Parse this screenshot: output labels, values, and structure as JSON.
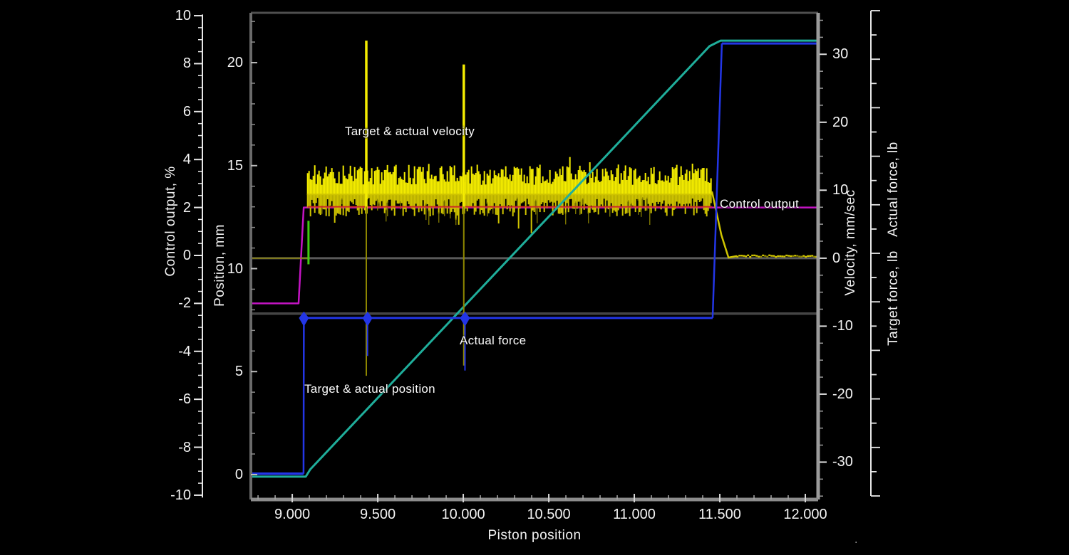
{
  "chart_data": {
    "type": "line",
    "title": "",
    "xlabel": "Piston position",
    "legend_position": "in-plot annotations",
    "grid": "off",
    "background": "black",
    "axes": {
      "x": {
        "label": "Piston position",
        "range": [
          8.758,
          12.075
        ],
        "tick_values": [
          9.0,
          9.5,
          10.0,
          10.5,
          11.0,
          11.5,
          12.0
        ],
        "tick_labels": [
          "9.000",
          "9.500",
          "10.000",
          "10.500",
          "11.000",
          "11.500",
          "12.000"
        ],
        "minor_step": 0.1
      },
      "control": {
        "label": "Control output, %",
        "range": [
          -10.18,
          10.12
        ],
        "tick_values": [
          10,
          8,
          6,
          4,
          2,
          0,
          -2,
          -4,
          -6,
          -8,
          -10
        ],
        "tick_labels": [
          "10",
          "8",
          "6",
          "4",
          "2",
          "0",
          "-2",
          "-4",
          "-6",
          "-8",
          "-10"
        ],
        "minor_step": 0.5
      },
      "position": {
        "label": "Position, mm",
        "range": [
          -1.21,
          22.42
        ],
        "tick_values": [
          20,
          15,
          10,
          5,
          0
        ],
        "tick_labels": [
          "20",
          "15",
          "10",
          "5",
          "0"
        ],
        "minor_step": 1
      },
      "velocity": {
        "label": "Velocity, mm/sec",
        "range": [
          -35.5,
          36.1
        ],
        "tick_values": [
          30,
          20,
          10,
          0,
          -10,
          -20,
          -30
        ],
        "tick_labels": [
          "30",
          "20",
          "10",
          "0",
          "-10",
          "-20",
          "-30"
        ],
        "minor_step": 2.5
      },
      "actual_force": {
        "label": "Actual force, lb",
        "tick_labels": "unlabeled tick rule"
      },
      "target_force": {
        "label": "Target force, lb",
        "tick_labels": "unlabeled tick rule"
      }
    },
    "series": [
      {
        "name": "Control output",
        "axis": "control",
        "color_key": "trace_magenta",
        "points": [
          [
            8.758,
            -2.0
          ],
          [
            9.037,
            -2.0
          ],
          [
            9.067,
            2.0
          ],
          [
            12.075,
            2.0
          ]
        ]
      },
      {
        "name": "Control output under velocity noise",
        "axis": "control",
        "color_key": "trace_red_overlay",
        "points": [
          [
            9.09,
            2.03
          ],
          [
            11.455,
            2.03
          ]
        ]
      },
      {
        "name": "Target & actual position",
        "axis": "position",
        "color_key": "trace_cyan",
        "points": [
          [
            8.758,
            -0.1
          ],
          [
            9.079,
            -0.1
          ],
          [
            9.105,
            0.25
          ],
          [
            11.44,
            20.8
          ],
          [
            11.505,
            21.07
          ],
          [
            12.075,
            21.07
          ]
        ]
      },
      {
        "name": "Target velocity step edge",
        "axis": "velocity",
        "color_key": "trace_green",
        "points": [
          [
            9.095,
            -0.9
          ],
          [
            9.095,
            5.5
          ]
        ]
      },
      {
        "name": "Target & actual velocity",
        "axis": "velocity",
        "color_key": "trace_yellow",
        "baseline_before": 0,
        "settle_after": 0.3,
        "band": {
          "x_start": 9.09,
          "x_end": 11.455,
          "mean": 9.7,
          "typ_spread": 3.2,
          "max_spread": 6.5
        },
        "spikes": [
          {
            "x": 9.433,
            "peak": 32.0,
            "trough": -17.3
          },
          {
            "x": 10.003,
            "peak": 28.5,
            "trough": -15.8
          }
        ]
      },
      {
        "name": "Actual force",
        "axis": "force_unlabeled_frac",
        "color_key": "trace_blue",
        "points_frac": [
          [
            8.758,
            0.947
          ],
          [
            9.066,
            0.947
          ],
          [
            9.068,
            0.627
          ],
          [
            11.458,
            0.627
          ],
          [
            11.512,
            0.063
          ],
          [
            12.075,
            0.063
          ]
        ],
        "spikes_frac": [
          {
            "x": 9.068,
            "to": 0.7
          },
          {
            "x": 9.44,
            "to": 0.705
          },
          {
            "x": 10.01,
            "to": 0.735
          }
        ]
      },
      {
        "name": "Target force",
        "axis": "force_unlabeled_frac",
        "color_key": "target_force_gray",
        "points_frac": [
          [
            8.758,
            0.618
          ],
          [
            12.075,
            0.618
          ]
        ]
      },
      {
        "name": "Velocity zero reference",
        "axis": "velocity",
        "color_key": "ref_line_gray",
        "points": [
          [
            8.758,
            0
          ],
          [
            12.075,
            0
          ]
        ]
      }
    ],
    "annotations": [
      {
        "text": "Target & actual velocity"
      },
      {
        "text": "Control output"
      },
      {
        "text": "Actual force"
      },
      {
        "text": "Target & actual position"
      }
    ],
    "stray_mark": "."
  },
  "colors": {
    "background": "#000000",
    "trace_yellow": "#f4ec00",
    "trace_yellow_dim": "#cfc400",
    "trace_yellow_dark": "#8f8800",
    "trace_blue": "#2336e6",
    "trace_cyan": "#1fae9b",
    "trace_magenta": "#c414c4",
    "trace_red_overlay": "#cd2a23",
    "trace_green": "#3fca10",
    "ref_line_gray": "#5a5a5a",
    "target_force_gray": "#454545",
    "frame_gray": "#7a7a7a",
    "tick_gray": "#cccccc",
    "text": "#f5f5f5"
  }
}
